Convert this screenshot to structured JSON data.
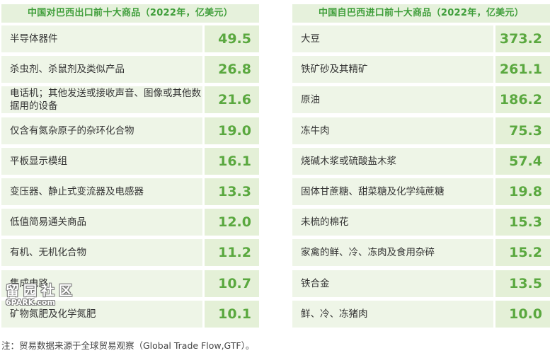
{
  "chart_data": [
    {
      "type": "table",
      "title": "中国对巴西出口前十大商品（2022年，亿美元）",
      "categories": [
        "半导体器件",
        "杀虫剂、杀鼠剂及类似产品",
        "电话机；其他发送或接收声音、图像或其他数据用的设备",
        "仅含有氮杂原子的杂环化合物",
        "平板显示模组",
        "变压器、静止式变流器及电感器",
        "低值简易通关商品",
        "有机、无机化合物",
        "集成电路",
        "矿物氮肥及化学氮肥"
      ],
      "values": [
        "49.5",
        "26.8",
        "21.6",
        "19.0",
        "16.1",
        "13.3",
        "12.0",
        "11.2",
        "10.7",
        "10.1"
      ]
    },
    {
      "type": "table",
      "title": "中国自巴西进口前十大商品（2022年，亿美元）",
      "categories": [
        "大豆",
        "铁矿砂及其精矿",
        "原油",
        "冻牛肉",
        "烧碱木浆或硫酸盐木浆",
        "固体甘蔗糖、甜菜糖及化学纯蔗糖",
        "未梳的棉花",
        "家禽的鲜、冷、冻肉及食用杂碎",
        "铁合金",
        "鲜、冷、冻猪肉"
      ],
      "values": [
        "373.2",
        "261.1",
        "186.2",
        "75.3",
        "57.4",
        "19.8",
        "15.3",
        "15.2",
        "13.5",
        "10.0"
      ]
    }
  ],
  "note": "注：贸易数据来源于全球贸易观察（Global Trade Flow,GTF）。",
  "watermark": {
    "line1": "留园社区",
    "line2": "6PARK.com"
  },
  "colors": {
    "header_bg": "#e6f1dc",
    "header_text": "#3f9e3a",
    "row_bg": "#eef5e7",
    "value_bg": "#e4f0d7",
    "value_text": "#5aa83f"
  }
}
